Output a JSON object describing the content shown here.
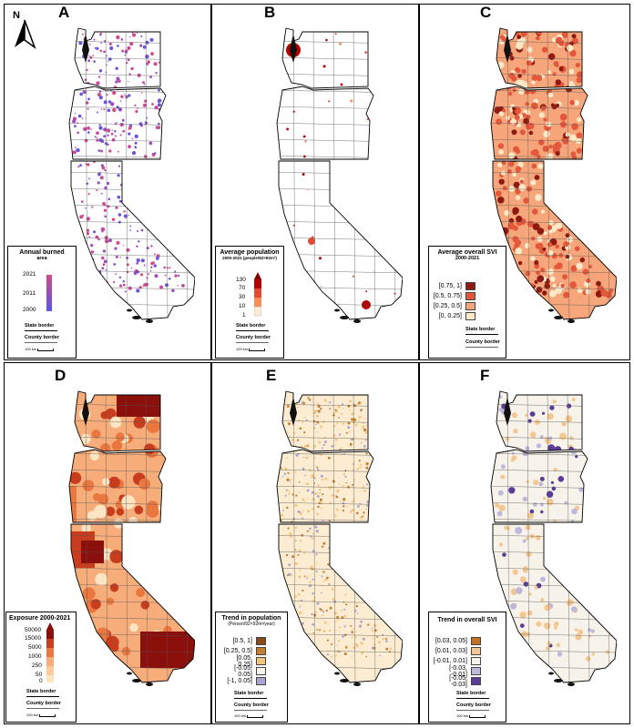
{
  "north": {
    "label": "N"
  },
  "panels": [
    {
      "id": "A",
      "legend_title": "Annual burned",
      "legend_sub": "area",
      "ticks": [
        "2021",
        "2011",
        "2000"
      ],
      "state_border": "State border",
      "county_border": "County border",
      "scalebar": "100 km",
      "colors": [
        "#d04a8a",
        "#5b55e6"
      ]
    },
    {
      "id": "B",
      "legend_title": "Average population",
      "legend_sub": "2000-2021 (people/92×92m²)",
      "ticks": [
        "130",
        "70",
        "30",
        "10",
        "1"
      ],
      "state_border": "State border",
      "county_border": "County border",
      "scalebar": "100 km",
      "colors": [
        "#fdebd7",
        "#fc8d59",
        "#b30000",
        "#7f0000"
      ]
    },
    {
      "id": "C",
      "legend_title": "Average overall SVI",
      "legend_sub": "2000-2021",
      "classes": [
        "[0.75, 1]",
        "[0.5, 0.75]",
        "[0.25, 0.5]",
        "[0, 0.25]"
      ],
      "class_colors": [
        "#8e1a12",
        "#e4573a",
        "#f6a67a",
        "#fde9c8"
      ],
      "state_border": "State border",
      "county_border": "County border"
    },
    {
      "id": "D",
      "legend_title": "Exposure 2000-2021",
      "ticks": [
        "50000",
        "15000",
        "5000",
        "1000",
        "250",
        "50",
        "0"
      ],
      "state_border": "State border",
      "county_border": "County border",
      "scalebar": "100 km",
      "colors": [
        "#fde4c3",
        "#f6ad7a",
        "#e9773f",
        "#c73d1e",
        "#8b0f0b"
      ]
    },
    {
      "id": "E",
      "legend_title": "Trend in population",
      "legend_sub": "(Person/92×92m²/year)",
      "classes": [
        "[0.5, 1]",
        "[0.25, 0.5]",
        "[0.05, 0.25]",
        "[-0.05, 0.05]",
        "[-1, 0.05]"
      ],
      "class_colors": [
        "#8a4b12",
        "#c57d2d",
        "#f3c57a",
        "#f7f3ea",
        "#a9a4d4"
      ],
      "state_border": "State border",
      "county_border": "County border",
      "scalebar": "100 km"
    },
    {
      "id": "F",
      "legend_title": "Trend in overall SVI",
      "classes": [
        "[0.03, 0.05]",
        "[0.01, 0.03]",
        "[-0.01, 0.01]",
        "[-0.03, -0.01]",
        "[-0.05, -0.03]"
      ],
      "class_colors": [
        "#c27125",
        "#f4c790",
        "#f7f3ea",
        "#bfb8dd",
        "#5b3c97"
      ],
      "state_border": "State border",
      "county_border": "County border",
      "scalebar": "100 km"
    }
  ]
}
